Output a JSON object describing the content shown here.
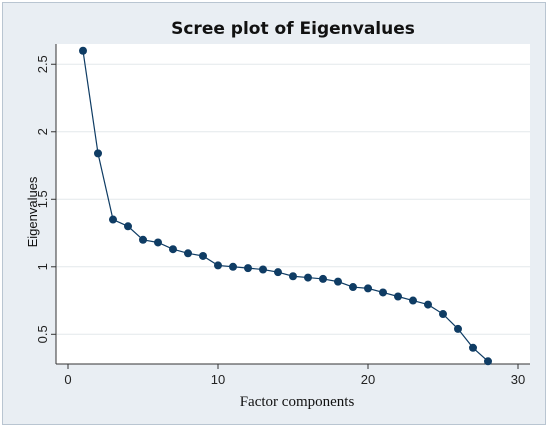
{
  "chart_data": {
    "type": "line",
    "title": "Scree plot of Eigenvalues",
    "xlabel": "Factor components",
    "ylabel": "Eigenvalues",
    "xlim": [
      0,
      30
    ],
    "ylim": [
      0.28,
      2.65
    ],
    "x_ticks": [
      0,
      10,
      20,
      30
    ],
    "x_tick_labels": [
      "0",
      "10",
      "20",
      "30"
    ],
    "y_ticks": [
      0.5,
      1,
      1.5,
      2,
      2.5
    ],
    "y_tick_labels": [
      "0.5",
      "1",
      "1.5",
      "2",
      "2.5"
    ],
    "grid": true,
    "legend": false,
    "series_color": "#0f3c64",
    "series": [
      {
        "x": [
          1,
          2,
          3,
          4,
          5,
          6,
          7,
          8,
          9,
          10,
          11,
          12,
          13,
          14,
          15,
          16,
          17,
          18,
          19,
          20,
          21,
          22,
          23,
          24,
          25,
          26,
          27,
          28
        ],
        "values": [
          2.6,
          1.84,
          1.35,
          1.3,
          1.2,
          1.18,
          1.13,
          1.1,
          1.08,
          1.01,
          1.0,
          0.99,
          0.98,
          0.96,
          0.93,
          0.92,
          0.91,
          0.89,
          0.85,
          0.84,
          0.81,
          0.78,
          0.75,
          0.72,
          0.65,
          0.54,
          0.4,
          0.3
        ]
      }
    ]
  }
}
